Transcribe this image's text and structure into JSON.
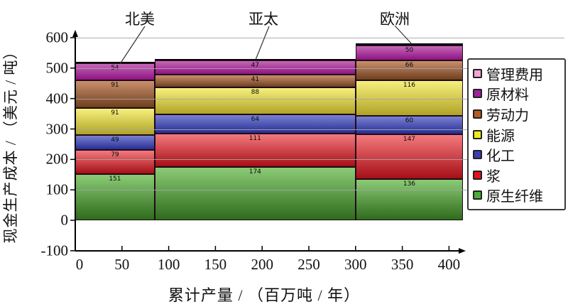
{
  "chart_data": {
    "type": "bar",
    "variant": "variable_width_stacked_cost_curve",
    "title": "",
    "xlabel": "累计产量 / （百万吨 / 年）",
    "ylabel": "现金生产成本 / （美元 / 吨）",
    "xlim": [
      0,
      415
    ],
    "ylim": [
      -100,
      600
    ],
    "x_ticks": [
      0,
      50,
      100,
      150,
      200,
      250,
      300,
      350,
      400
    ],
    "y_ticks": [
      -100,
      0,
      100,
      200,
      300,
      400,
      500,
      600
    ],
    "grid": true,
    "legend_position": "right",
    "categories": [
      {
        "key": "virgin_fiber",
        "label": "原生纤维",
        "light": "#8CCB76",
        "dark": "#2E6B1C",
        "swatch": "#4BAD39"
      },
      {
        "key": "pulp",
        "label": "浆",
        "light": "#F37A7E",
        "dark": "#A60F16",
        "swatch": "#E6111B"
      },
      {
        "key": "chemicals",
        "label": "化工",
        "light": "#7A81D2",
        "dark": "#272E93",
        "swatch": "#3A3EB3"
      },
      {
        "key": "energy",
        "label": "能源",
        "light": "#F6F07D",
        "dark": "#B1A327",
        "swatch": "#F0E81D"
      },
      {
        "key": "labor",
        "label": "劳动力",
        "light": "#C9906E",
        "dark": "#6F3F1D",
        "swatch": "#B45B21"
      },
      {
        "key": "raw_materials",
        "label": "原材料",
        "light": "#C668B7",
        "dark": "#8E1383",
        "swatch": "#A2219B"
      },
      {
        "key": "admin_expenses",
        "label": "管理费用",
        "light": "#F4ACDF",
        "dark": "#E98FD0",
        "swatch": "#F2A3D9"
      }
    ],
    "regions": [
      {
        "key": "north_america",
        "name": "北美",
        "x_range": [
          0,
          85
        ],
        "segments": [
          151,
          79,
          49,
          91,
          91,
          54,
          5
        ],
        "segment_labels": [
          "151",
          "79",
          "49",
          "91",
          "91",
          "54",
          ""
        ]
      },
      {
        "key": "asia_pacific",
        "name": "亚太",
        "x_range": [
          85,
          300
        ],
        "segments": [
          174,
          111,
          64,
          88,
          41,
          47,
          5
        ],
        "segment_labels": [
          "174",
          "111",
          "64",
          "88",
          "41",
          "47",
          ""
        ]
      },
      {
        "key": "europe",
        "name": "欧洲",
        "x_range": [
          300,
          415
        ],
        "segments": [
          136,
          147,
          60,
          116,
          66,
          50,
          5
        ],
        "segment_labels": [
          "136",
          "147",
          "60",
          "116",
          "66",
          "50",
          ""
        ]
      }
    ]
  }
}
